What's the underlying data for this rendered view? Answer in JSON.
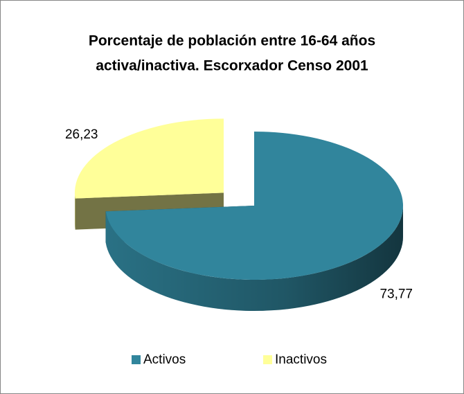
{
  "chart_data": {
    "type": "pie3d",
    "title": [
      "Porcentaje de población entre 16-64 años",
      "activa/inactiva.  Escorxador Censo 2001"
    ],
    "categories": [
      "Activos",
      "Inactivos"
    ],
    "values": [
      73.77,
      26.23
    ],
    "value_labels": [
      "73,77",
      "26,23"
    ],
    "colors": [
      "#31859c",
      "#ffff99"
    ],
    "legend": "bottom"
  }
}
